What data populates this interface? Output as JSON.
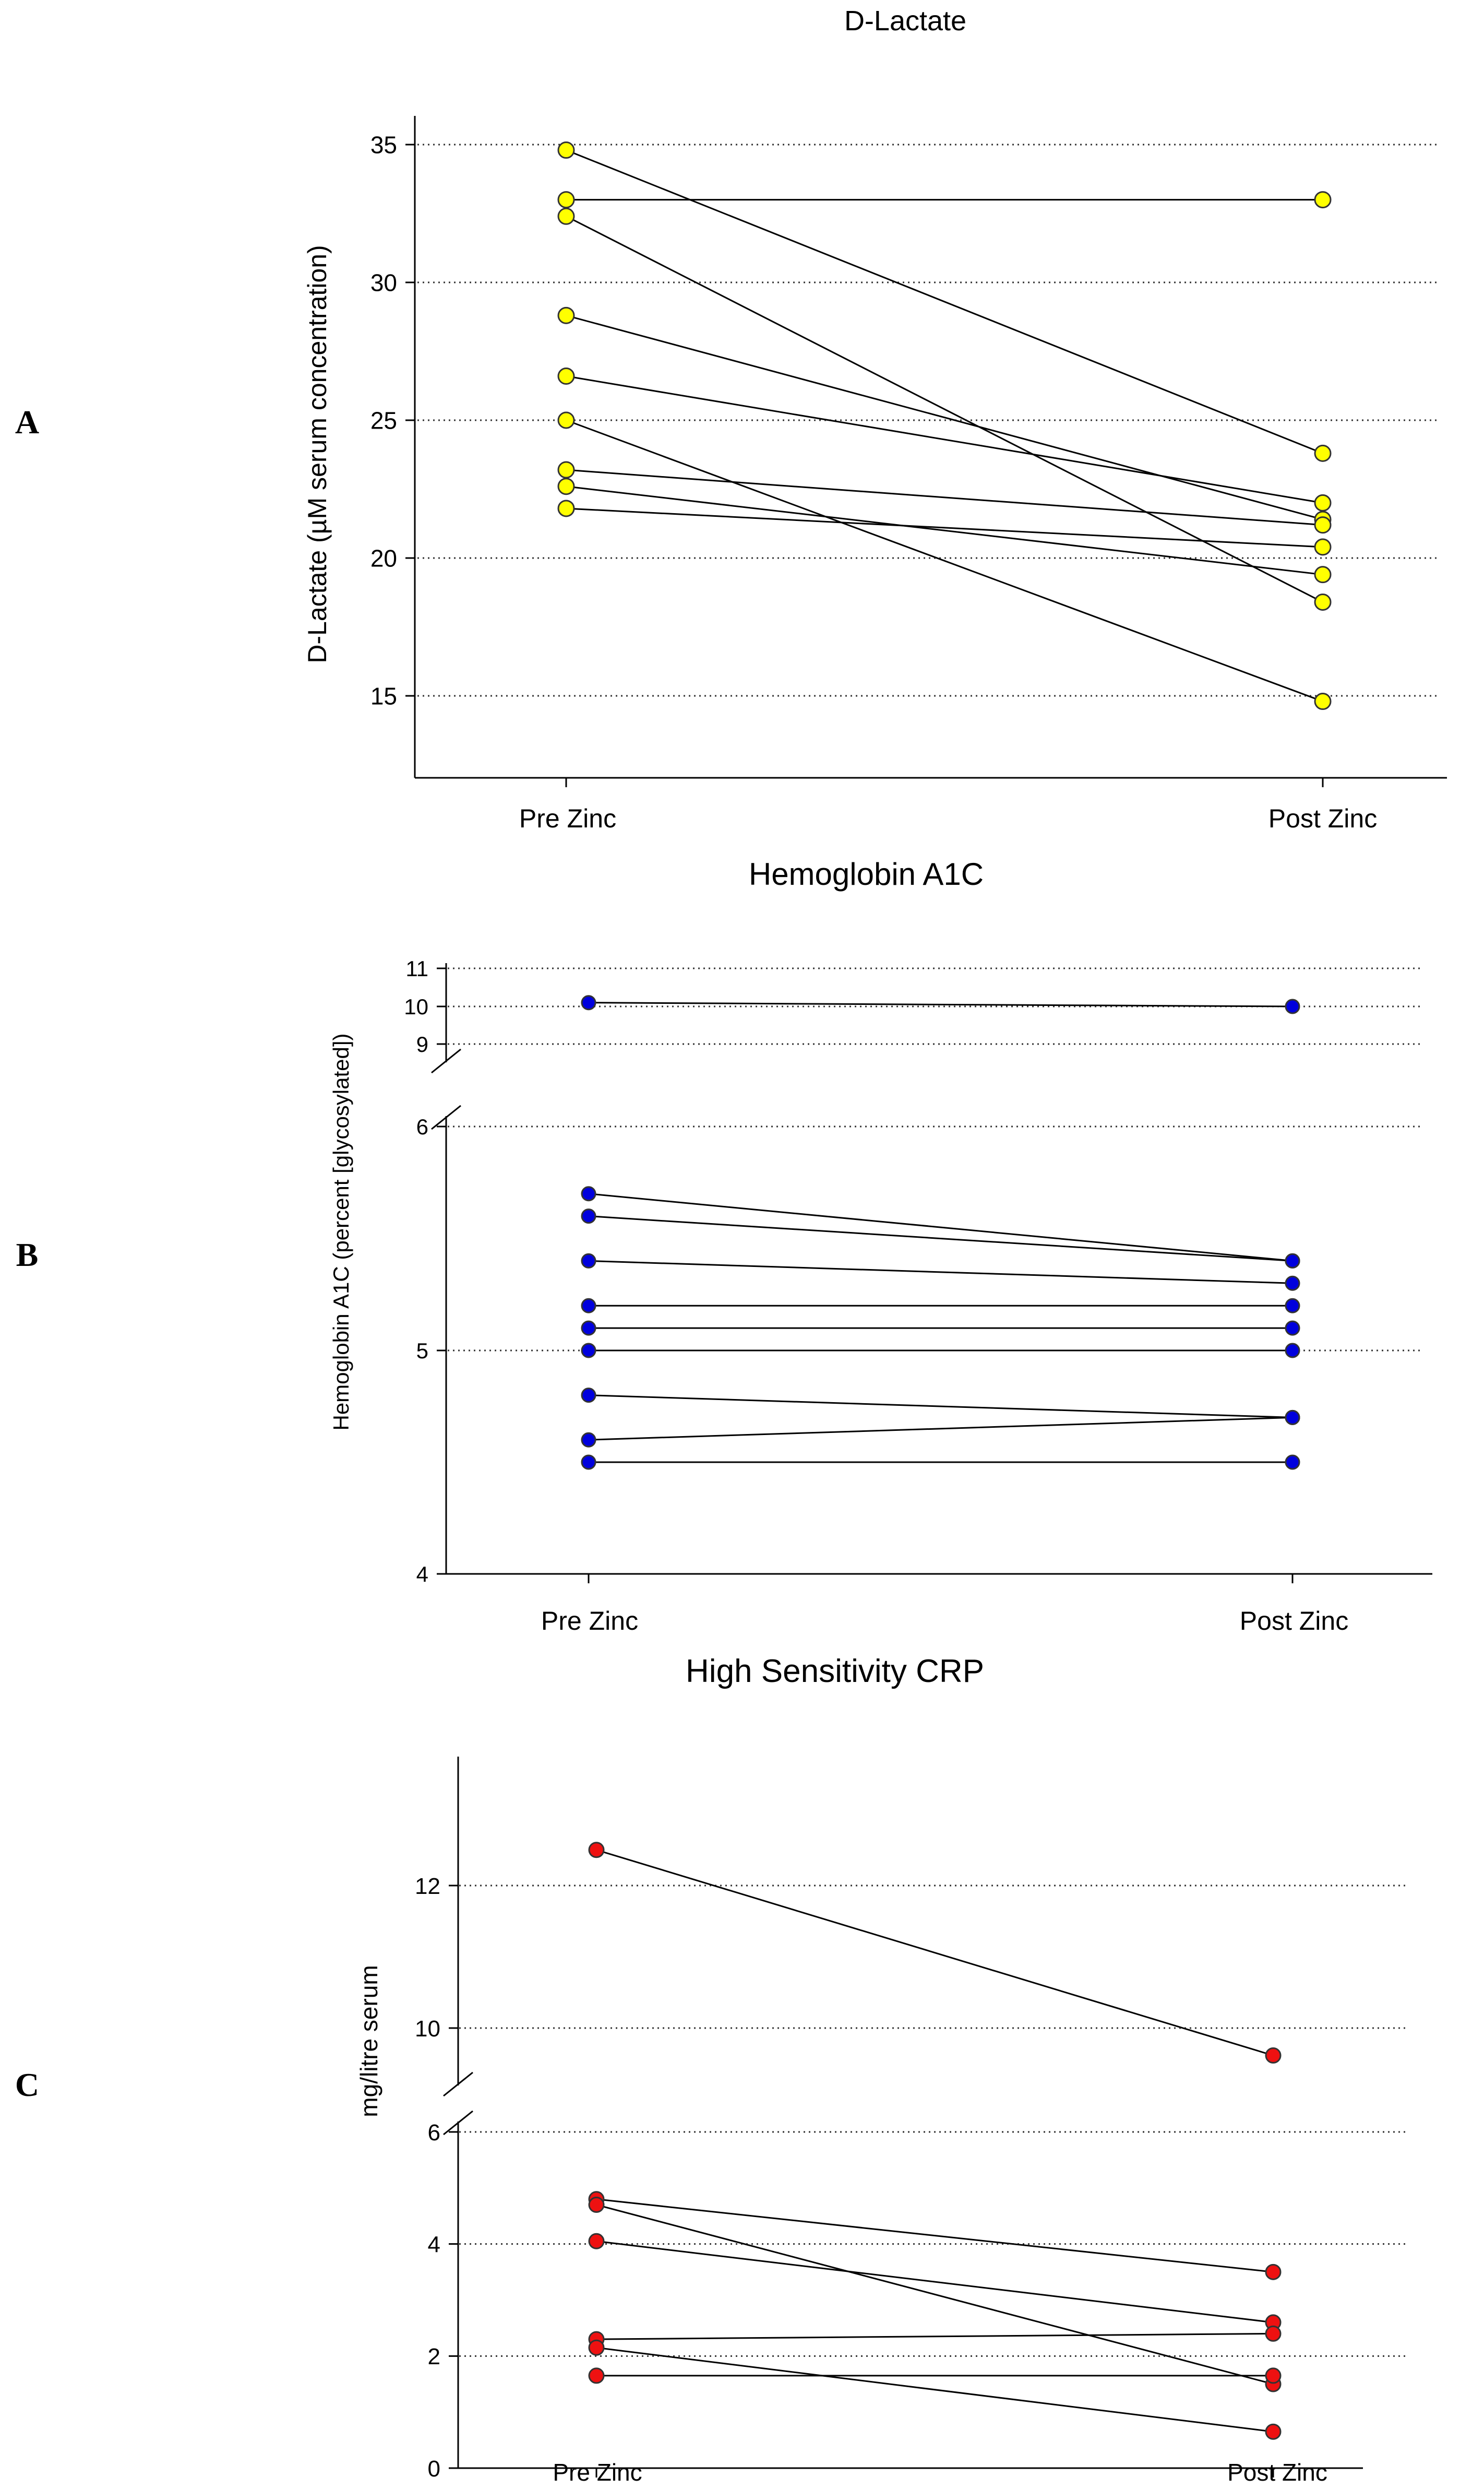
{
  "panel_labels": [
    "A",
    "B",
    "C"
  ],
  "chart_data": [
    {
      "type": "line",
      "panel": "A",
      "title": "D-Lactate",
      "ylabel": "D-Lactate (µM serum concentration)",
      "xlabel": "",
      "categories": [
        "Pre Zinc",
        "Post Zinc"
      ],
      "ylim": [
        12.5,
        36
      ],
      "yticks": [
        15,
        20,
        25,
        30,
        35
      ],
      "grid": true,
      "marker_color": "#ffff00",
      "pairs": [
        [
          34.8,
          23.8
        ],
        [
          33.0,
          33.0
        ],
        [
          32.4,
          18.4
        ],
        [
          28.8,
          21.4
        ],
        [
          26.6,
          22.0
        ],
        [
          25.0,
          14.8
        ],
        [
          23.2,
          21.2
        ],
        [
          22.6,
          19.4
        ],
        [
          21.8,
          20.4
        ]
      ]
    },
    {
      "type": "line",
      "panel": "B",
      "title": "Hemoglobin A1C",
      "ylabel": "Hemoglobin A1C (percent [glycosylated])",
      "xlabel": "",
      "categories": [
        "Pre Zinc",
        "Post Zinc"
      ],
      "ylim": [
        4,
        11
      ],
      "axis_break": [
        6,
        9
      ],
      "yticks": [
        4,
        5,
        6,
        9,
        10,
        11
      ],
      "grid": true,
      "marker_color": "#0000dd",
      "pairs": [
        [
          10.1,
          10.0
        ],
        [
          5.7,
          5.4
        ],
        [
          5.6,
          5.4
        ],
        [
          5.4,
          5.3
        ],
        [
          5.2,
          5.2
        ],
        [
          5.1,
          5.1
        ],
        [
          5.0,
          5.0
        ],
        [
          4.8,
          4.7
        ],
        [
          4.6,
          4.7
        ],
        [
          4.5,
          4.5
        ]
      ]
    },
    {
      "type": "line",
      "panel": "C",
      "title": "High Sensitivity CRP",
      "ylabel": "mg/litre serum",
      "xlabel": "",
      "categories": [
        "Pre Zinc",
        "Post Zinc"
      ],
      "ylim": [
        0,
        13
      ],
      "axis_break": [
        6,
        9
      ],
      "yticks": [
        0,
        2,
        4,
        6,
        10,
        12
      ],
      "grid": true,
      "marker_color": "#ee1111",
      "pairs": [
        [
          12.5,
          9.3
        ],
        [
          4.8,
          3.5
        ],
        [
          4.7,
          1.5
        ],
        [
          4.05,
          2.6
        ],
        [
          2.3,
          2.4
        ],
        [
          2.15,
          0.65
        ],
        [
          1.65,
          1.65
        ]
      ]
    }
  ]
}
